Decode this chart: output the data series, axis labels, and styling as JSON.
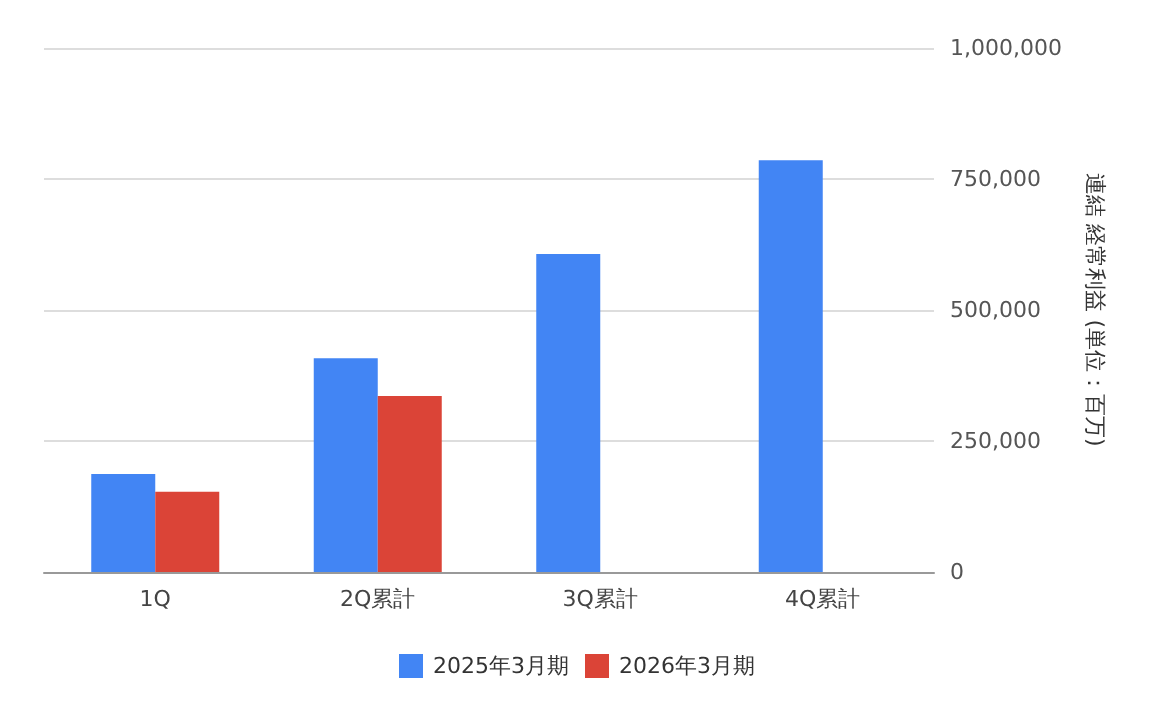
{
  "chart_data": {
    "type": "bar",
    "ylabel": "連結 経常利益 (単位：百万)",
    "categories": [
      "1Q",
      "2Q累計",
      "3Q累計",
      "4Q累計"
    ],
    "series": [
      {
        "name": "2025年3月期",
        "color": "#4285f4",
        "values": [
          187000,
          408000,
          607000,
          786000
        ]
      },
      {
        "name": "2026年3月期",
        "color": "#db4437",
        "values": [
          153000,
          336000,
          null,
          null
        ]
      }
    ],
    "ylim": [
      0,
      1000000
    ],
    "yticks": [
      {
        "value": 0,
        "label": "0"
      },
      {
        "value": 250000,
        "label": "250,000"
      },
      {
        "value": 500000,
        "label": "500,000"
      },
      {
        "value": 750000,
        "label": "750,000"
      },
      {
        "value": 1000000,
        "label": "1,000,000"
      }
    ],
    "grid": "y",
    "legend": "bottom"
  }
}
